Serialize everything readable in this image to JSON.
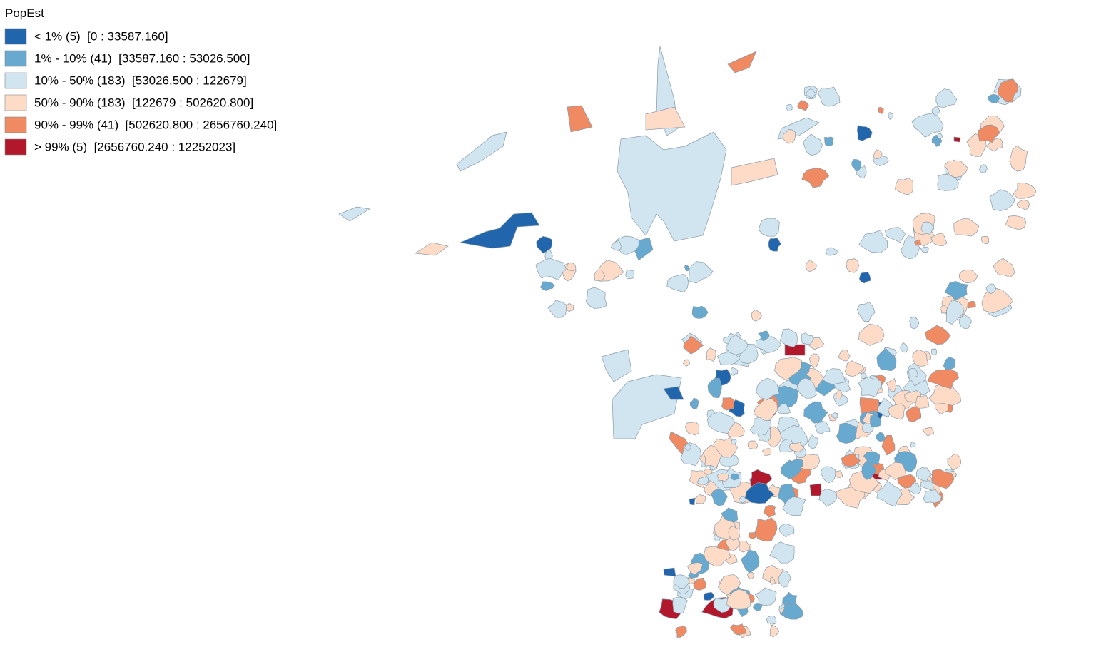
{
  "legend": {
    "title": "PopEst",
    "items": [
      {
        "label": "< 1% (5)  [0 : 33587.160]",
        "color": "#2166ac"
      },
      {
        "label": "1% - 10% (41)  [33587.160 : 53026.500]",
        "color": "#67a9cf"
      },
      {
        "label": "10% - 50% (183)  [53026.500 : 122679]",
        "color": "#d1e5f0"
      },
      {
        "label": "50% - 90% (183)  [122679 : 502620.800]",
        "color": "#fddbc7"
      },
      {
        "label": "90% - 99% (41)  [502620.800 : 2656760.240]",
        "color": "#ef8a62"
      },
      {
        "label": "> 99% (5)  [2656760.240 : 12252023]",
        "color": "#b2182b"
      }
    ]
  }
}
